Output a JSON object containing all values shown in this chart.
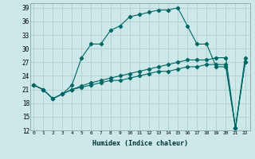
{
  "title": "",
  "xlabel": "Humidex (Indice chaleur)",
  "ylabel": "",
  "bg_color": "#cce8e8",
  "grid_color": "#aacccc",
  "line_color": "#006666",
  "x_ticks": [
    0,
    1,
    2,
    3,
    4,
    5,
    6,
    7,
    8,
    9,
    10,
    11,
    12,
    13,
    14,
    15,
    16,
    17,
    18,
    19,
    20,
    21,
    22
  ],
  "ylim": [
    12,
    40
  ],
  "xlim": [
    -0.3,
    22.5
  ],
  "yticks": [
    12,
    15,
    18,
    21,
    24,
    27,
    30,
    33,
    36,
    39
  ],
  "series": [
    {
      "x": [
        0,
        1,
        2,
        3,
        4,
        5,
        6,
        7,
        8,
        9,
        10,
        11,
        12,
        13,
        14,
        15,
        16,
        17,
        18,
        19,
        20,
        21,
        22
      ],
      "y": [
        22,
        21,
        19,
        20,
        22,
        28,
        31,
        31,
        34,
        35,
        37,
        37.5,
        38,
        38.5,
        38.5,
        39,
        35,
        31,
        31,
        26,
        26,
        12.5,
        27
      ]
    },
    {
      "x": [
        0,
        1,
        2,
        3,
        4,
        5,
        6,
        7,
        8,
        9,
        10,
        11,
        12,
        13,
        14,
        15,
        16,
        17,
        18,
        19,
        20,
        21,
        22
      ],
      "y": [
        22,
        21,
        19,
        20,
        21,
        21.5,
        22,
        22.5,
        23,
        23,
        23.5,
        24,
        24.5,
        25,
        25,
        25.5,
        26,
        26,
        26.5,
        26.5,
        26.5,
        12.5,
        27
      ]
    },
    {
      "x": [
        0,
        1,
        2,
        3,
        4,
        5,
        6,
        7,
        8,
        9,
        10,
        11,
        12,
        13,
        14,
        15,
        16,
        17,
        18,
        19,
        20,
        21,
        22
      ],
      "y": [
        22,
        21,
        19,
        20,
        21,
        21.8,
        22.5,
        23,
        23.5,
        24,
        24.5,
        25,
        25.5,
        26,
        26.5,
        27,
        27.5,
        27.5,
        27.5,
        28,
        28,
        12.5,
        28
      ]
    }
  ]
}
